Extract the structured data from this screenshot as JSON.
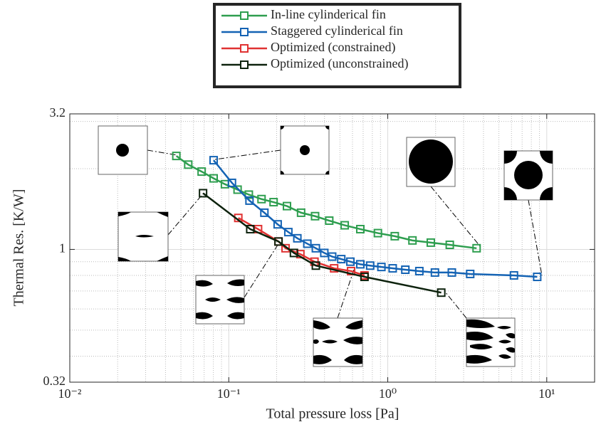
{
  "chart_data": {
    "type": "line",
    "x_label": "Total pressure loss [Pa]",
    "y_label": "Thermal Res. [K/W]",
    "xscale": "log",
    "yscale": "log",
    "xlim": [
      0.01,
      20
    ],
    "ylim": [
      0.32,
      3.2
    ],
    "xticks": [
      {
        "value": 0.01,
        "label": "10⁻²"
      },
      {
        "value": 0.1,
        "label": "10⁻¹"
      },
      {
        "value": 1,
        "label": "10⁰"
      },
      {
        "value": 10,
        "label": "10¹"
      }
    ],
    "yticks": [
      0.32,
      1,
      3.2
    ],
    "grid": true,
    "minor_grid": true,
    "legend": "top-center",
    "series": [
      {
        "name": "In-line cylinderical fin",
        "color": "#2e9e4f",
        "x": [
          0.0468,
          0.0556,
          0.0675,
          0.0803,
          0.0946,
          0.1136,
          0.1337,
          0.1607,
          0.1914,
          0.2323,
          0.285,
          0.349,
          0.4285,
          0.536,
          0.672,
          0.867,
          1.107,
          1.43,
          1.865,
          2.455,
          3.62
        ],
        "values": [
          2.23,
          2.07,
          1.95,
          1.84,
          1.75,
          1.67,
          1.6,
          1.54,
          1.5,
          1.45,
          1.37,
          1.33,
          1.28,
          1.23,
          1.19,
          1.15,
          1.12,
          1.08,
          1.06,
          1.04,
          1.01
        ]
      },
      {
        "name": "Staggered cylinderical fin",
        "color": "#1463b4",
        "x": [
          0.0803,
          0.1047,
          0.135,
          0.1675,
          0.203,
          0.237,
          0.27,
          0.312,
          0.353,
          0.399,
          0.447,
          0.51,
          0.582,
          0.672,
          0.775,
          0.912,
          1.074,
          1.29,
          1.58,
          1.98,
          2.53,
          3.3,
          6.22,
          8.71
        ],
        "values": [
          2.15,
          1.77,
          1.52,
          1.37,
          1.24,
          1.16,
          1.1,
          1.05,
          1.01,
          0.97,
          0.94,
          0.92,
          0.9,
          0.88,
          0.87,
          0.86,
          0.85,
          0.84,
          0.83,
          0.82,
          0.82,
          0.81,
          0.8,
          0.79
        ]
      },
      {
        "name": "Optimized (constrained)",
        "color": "#e03232",
        "x": [
          0.1148,
          0.1528,
          0.2055,
          0.2276,
          0.282,
          0.346,
          0.46,
          0.588,
          0.714
        ],
        "values": [
          1.31,
          1.19,
          1.07,
          1.01,
          0.96,
          0.9,
          0.85,
          0.83,
          0.8
        ]
      },
      {
        "name": "Optimized (unconstrained)",
        "color": "#0d220d",
        "x": [
          0.0689,
          0.1365,
          0.2055,
          0.257,
          0.353,
          0.714,
          2.17
        ],
        "values": [
          1.62,
          1.19,
          1.07,
          0.97,
          0.87,
          0.79,
          0.69
        ]
      }
    ]
  }
}
